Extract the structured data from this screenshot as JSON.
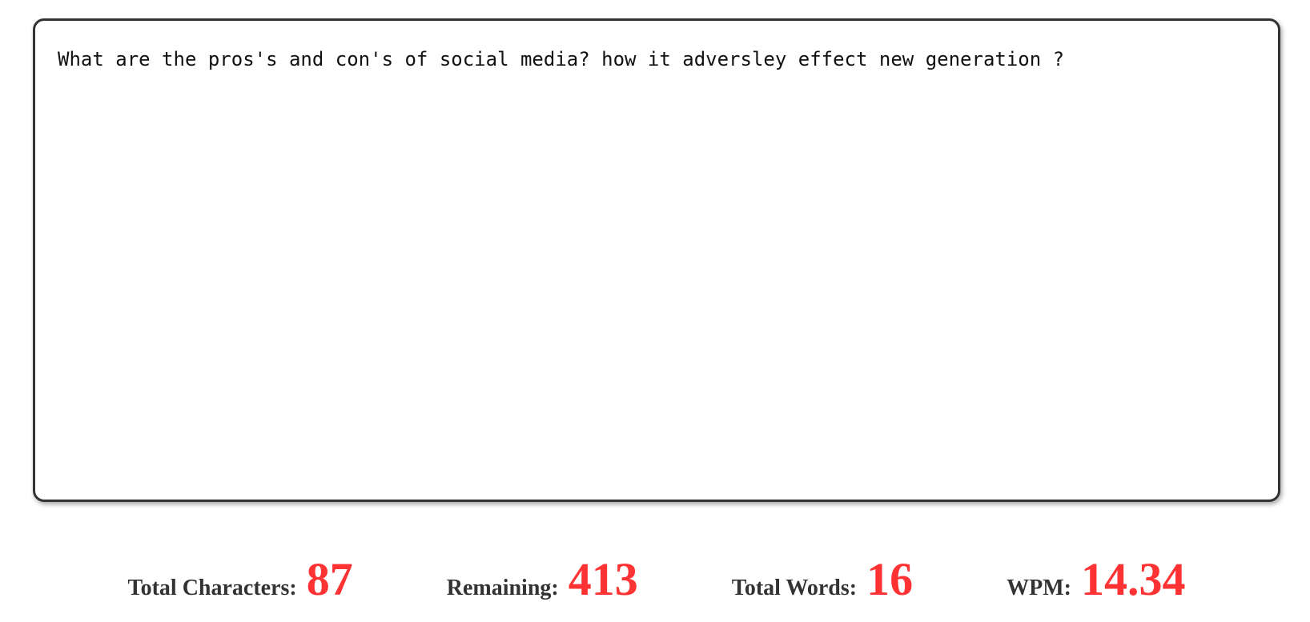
{
  "editor": {
    "text": "What are the pros's and con's of social media? how it adversley effect new generation ?"
  },
  "stats": {
    "total_characters": {
      "label": "Total Characters:",
      "value": "87"
    },
    "remaining": {
      "label": "Remaining:",
      "value": "413"
    },
    "total_words": {
      "label": "Total Words:",
      "value": "16"
    },
    "wpm": {
      "label": "WPM:",
      "value": "14.34"
    }
  },
  "colors": {
    "value_accent": "#ff3333",
    "label_text": "#333333",
    "border": "#333333"
  }
}
